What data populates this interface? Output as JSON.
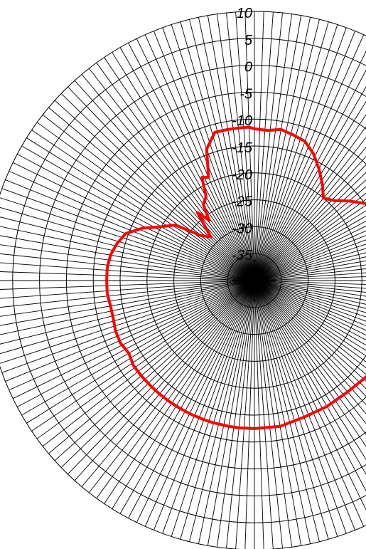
{
  "chart_data": {
    "type": "line",
    "projection": "polar",
    "title": "",
    "xlabel": "",
    "ylabel": "",
    "r_unit": "dB",
    "rlim": [
      -40,
      10
    ],
    "r_ticks": [
      10,
      5,
      0,
      -5,
      -10,
      -15,
      -20,
      -25,
      -30,
      -35
    ],
    "r_tick_labels": [
      "10",
      "5",
      "0",
      "-5",
      "-10",
      "-15",
      "-20",
      "-25",
      "-30",
      "-35"
    ],
    "theta_zero": "top",
    "theta_direction": "clockwise",
    "theta_grid_step_deg": 2,
    "theta_range_visible": [
      0,
      180
    ],
    "grid": true,
    "colors": {
      "trace": "#ff0000",
      "grid": "#000000",
      "background": "#ffffff"
    },
    "series": [
      {
        "theta_deg": [
          -2,
          0,
          5,
          10,
          15,
          20,
          25,
          30,
          35,
          40,
          45,
          50,
          55,
          60,
          70,
          80,
          90,
          100,
          110,
          120,
          130,
          140,
          150,
          160,
          170,
          180,
          186,
          190,
          196,
          200,
          205,
          210,
          215,
          220,
          225,
          230,
          235,
          240,
          245,
          250,
          255,
          260,
          265,
          270,
          275,
          280,
          285,
          290,
          295,
          300,
          305,
          310,
          315,
          320,
          323,
          326,
          330,
          333,
          336,
          340,
          345,
          350,
          355,
          358
        ],
        "r_db": [
          -11.5,
          -11.8,
          -12,
          -11.5,
          -12,
          -12.5,
          -14,
          -16,
          -18,
          -20,
          -19,
          -17,
          -15,
          -13,
          -12,
          -11.5,
          -11,
          -11,
          -11.5,
          -12,
          -12.5,
          -13,
          -13,
          -13,
          -12.5,
          -12.5,
          -12.5,
          -12.5,
          -12.5,
          -12.5,
          -12.5,
          -12.5,
          -12.5,
          -12.5,
          -12.5,
          -12.5,
          -12.5,
          -13,
          -12.5,
          -12.5,
          -12.8,
          -12.8,
          -12.5,
          -12.5,
          -12.5,
          -12.8,
          -13.5,
          -14.5,
          -17,
          -20,
          -22,
          -27,
          -28.5,
          -23.5,
          -26,
          -23,
          -22,
          -18.5,
          -19,
          -14,
          -11.5,
          -11.5,
          -11.5,
          -11.5
        ]
      }
    ]
  }
}
